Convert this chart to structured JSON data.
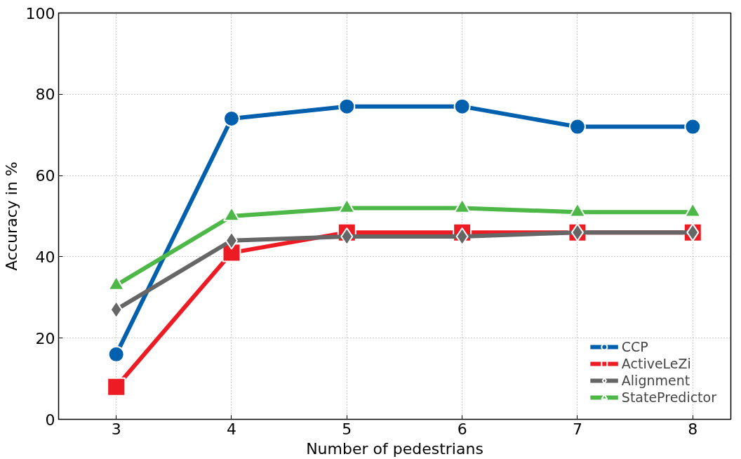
{
  "chart_data": {
    "type": "line",
    "xlabel": "Number of pedestrians",
    "ylabel": "Accuracy in %",
    "x": [
      3,
      4,
      5,
      6,
      7,
      8
    ],
    "series": [
      {
        "name": "CCP",
        "color": "#0060ad",
        "values": [
          16,
          74,
          77,
          77,
          72,
          72
        ],
        "marker": "circle"
      },
      {
        "name": "ActiveLeZi",
        "color": "#ed1c24",
        "values": [
          8,
          41,
          46,
          46,
          46,
          46
        ],
        "marker": "square"
      },
      {
        "name": "Alignment",
        "color": "#666666",
        "values": [
          27,
          44,
          45,
          45,
          46,
          46
        ],
        "marker": "diamond"
      },
      {
        "name": "StatePredictor",
        "color": "#4db848",
        "values": [
          33,
          50,
          52,
          52,
          51,
          51
        ],
        "marker": "triangle"
      }
    ],
    "xlim": [
      2.5,
      8.33
    ],
    "ylim": [
      0,
      100
    ],
    "xticks": [
      3,
      4,
      5,
      6,
      7,
      8
    ],
    "yticks": [
      0,
      20,
      40,
      60,
      80,
      100
    ],
    "grid": true,
    "legend": "bottom right",
    "line_style": "solid"
  }
}
